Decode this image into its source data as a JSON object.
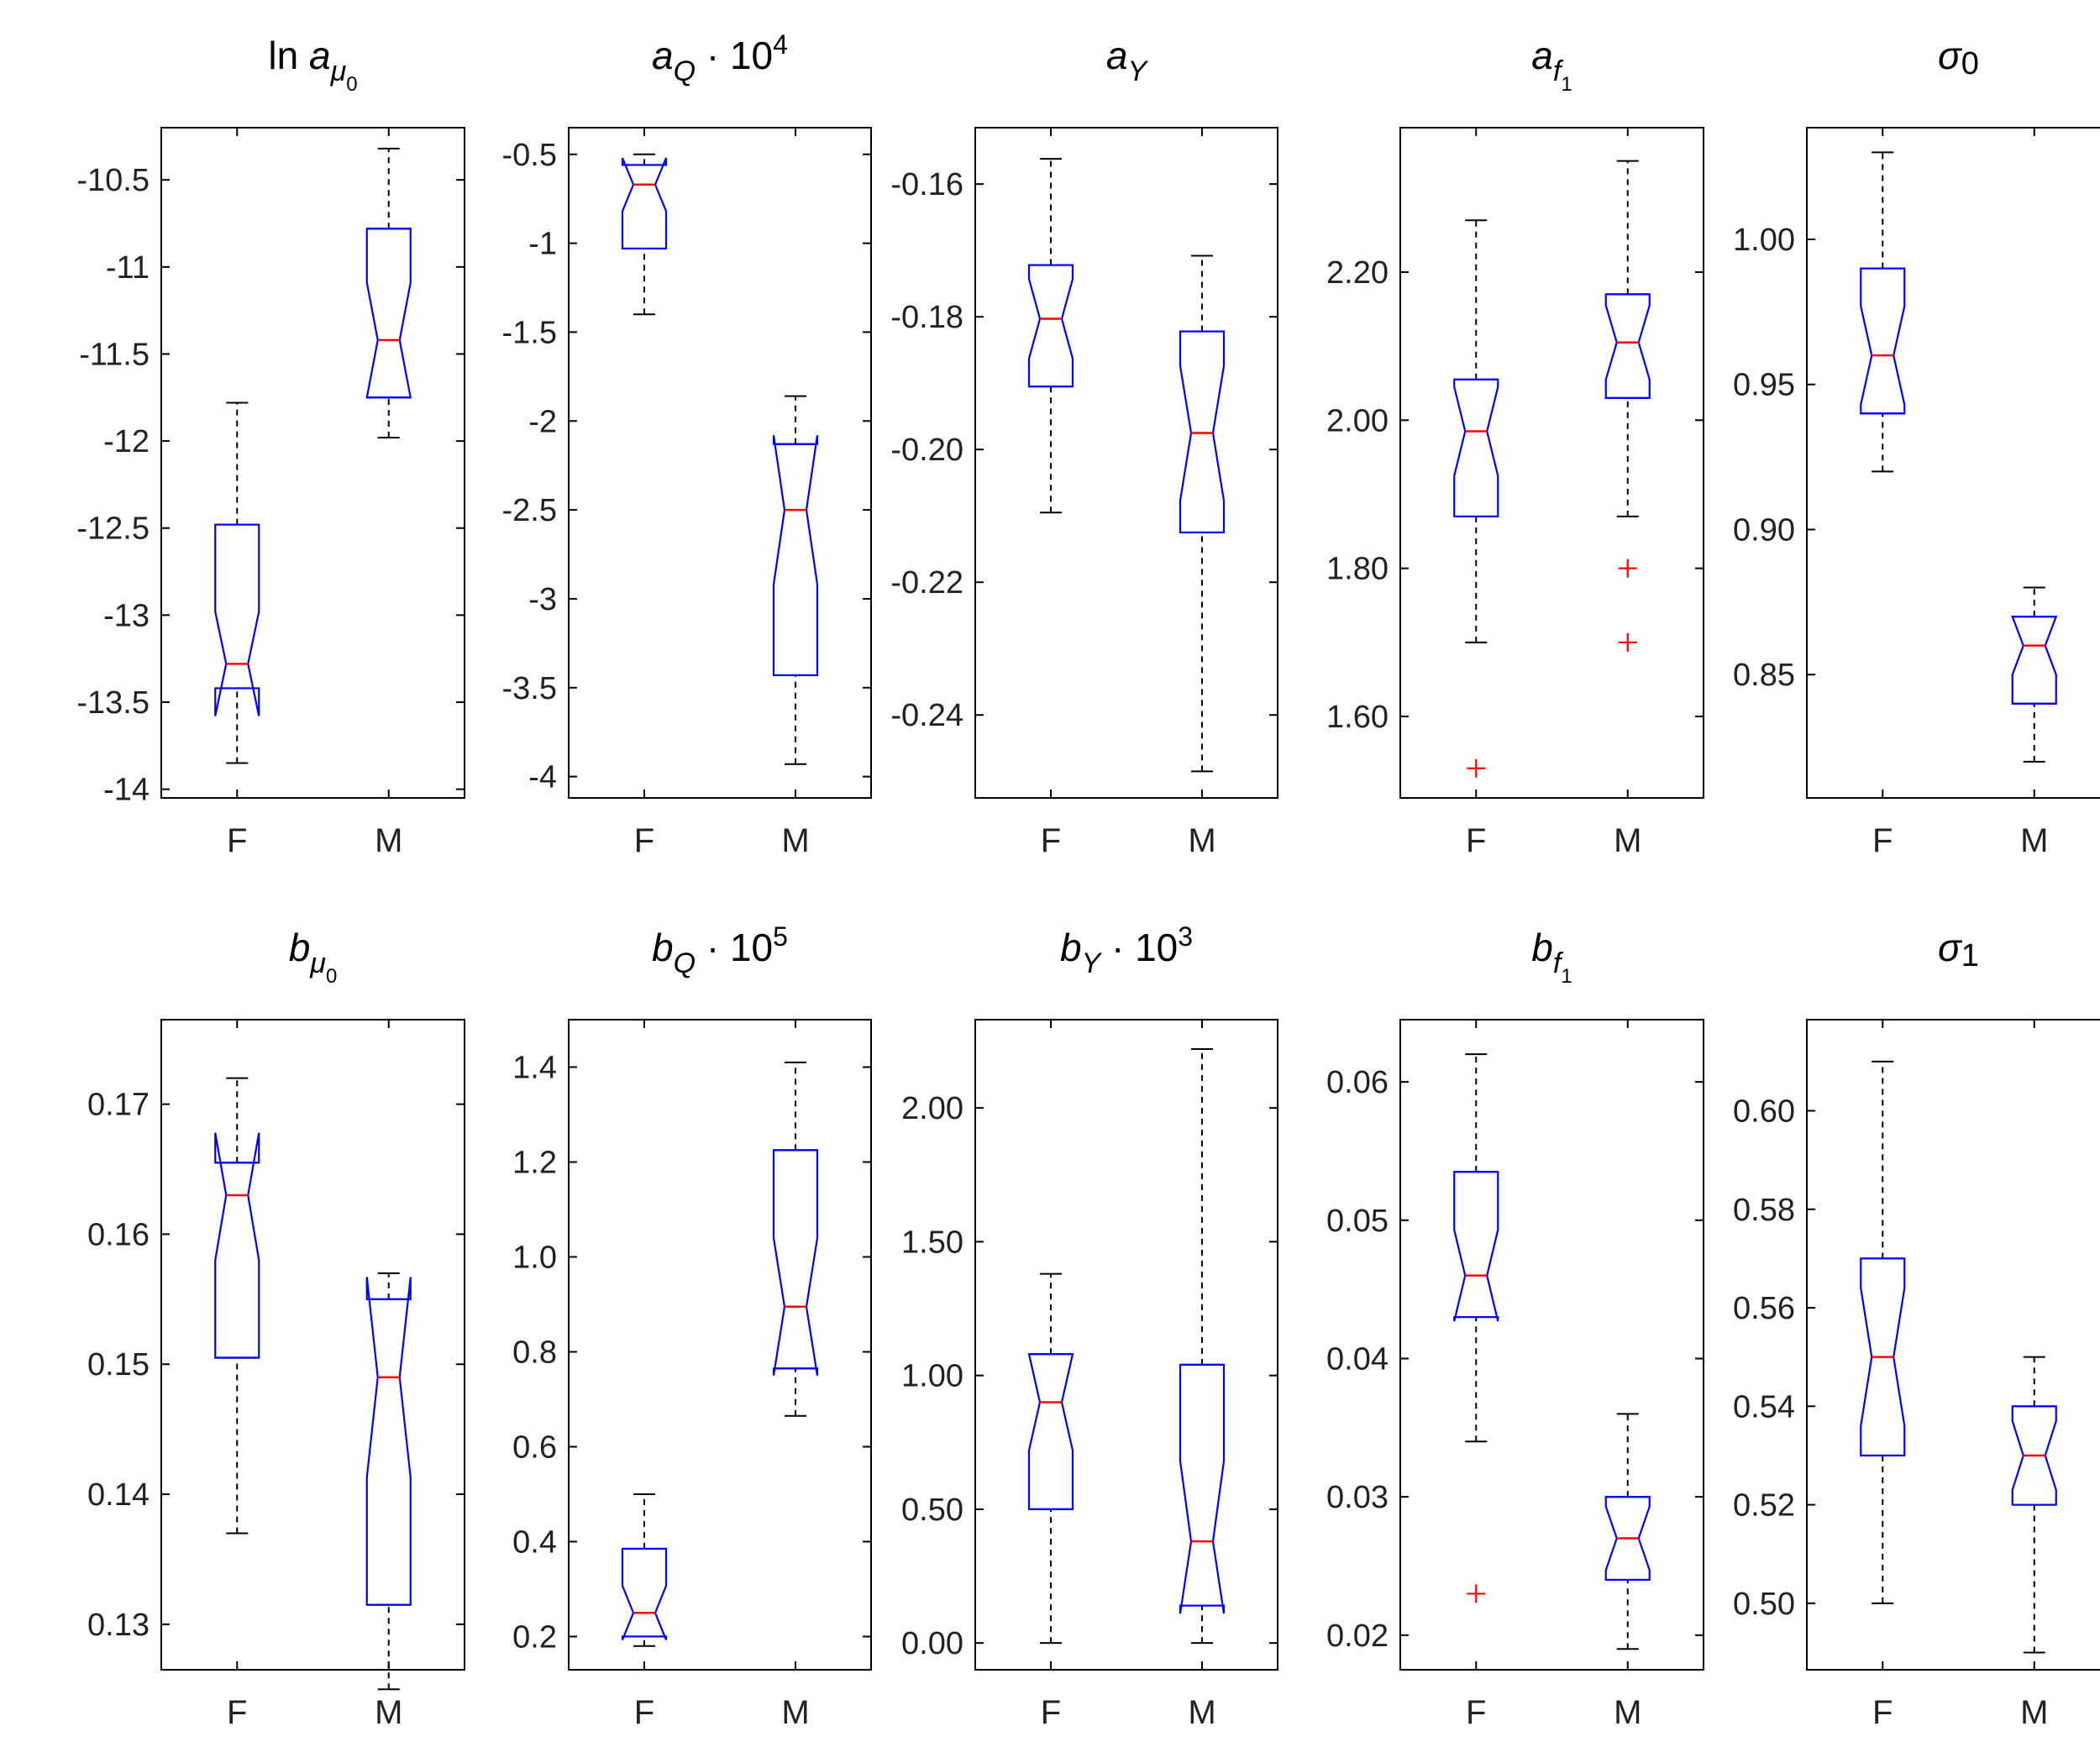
{
  "chart_data": [
    {
      "type": "boxplot",
      "title": "ln a",
      "title_sub": "μ",
      "title_subsub": "0",
      "title_prefix": "ln ",
      "categories": [
        "F",
        "M"
      ],
      "ylim": [
        -14.05,
        -10.2
      ],
      "yticks": [
        -14,
        -13.5,
        -13,
        -12.5,
        -12,
        -11.5,
        -11,
        -10.5
      ],
      "ytick_labels": [
        "-14",
        "-13.5",
        "-13",
        "-12.5",
        "-12",
        "-11.5",
        "-11",
        "-10.5"
      ],
      "boxes": [
        {
          "whisker_low": -13.85,
          "q1": -13.42,
          "median": -13.28,
          "q3": -12.48,
          "whisker_high": -11.78,
          "notch_low": -13.58,
          "notch_high": -12.98,
          "outliers": []
        },
        {
          "whisker_low": -11.98,
          "q1": -11.75,
          "median": -11.42,
          "q3": -10.78,
          "whisker_high": -10.32,
          "notch_low": -11.75,
          "notch_high": -11.09,
          "outliers": []
        }
      ]
    },
    {
      "type": "boxplot",
      "title": "a",
      "title_sub": "Q",
      "title_suffix": " · 10",
      "title_sup": "4",
      "categories": [
        "F",
        "M"
      ],
      "ylim": [
        -4.12,
        -0.35
      ],
      "yticks": [
        -4,
        -3.5,
        -3,
        -2.5,
        -2,
        -1.5,
        -1,
        -0.5
      ],
      "ytick_labels": [
        "-4",
        "-3.5",
        "-3",
        "-2.5",
        "-2",
        "-1.5",
        "-1",
        "-0.5"
      ],
      "boxes": [
        {
          "whisker_low": -1.4,
          "q1": -1.03,
          "median": -0.67,
          "q3": -0.56,
          "whisker_high": -0.5,
          "notch_low": -0.82,
          "notch_high": -0.52,
          "outliers": []
        },
        {
          "whisker_low": -3.93,
          "q1": -3.43,
          "median": -2.5,
          "q3": -2.13,
          "whisker_high": -1.86,
          "notch_low": -2.92,
          "notch_high": -2.08,
          "outliers": []
        }
      ]
    },
    {
      "type": "boxplot",
      "title": "a",
      "title_sub": "Y",
      "categories": [
        "F",
        "M"
      ],
      "ylim": [
        -0.2525,
        -0.1515
      ],
      "yticks": [
        -0.24,
        -0.22,
        -0.2,
        -0.18,
        -0.16
      ],
      "ytick_labels": [
        "-0.24",
        "-0.22",
        "-0.20",
        "-0.18",
        "-0.16"
      ],
      "boxes": [
        {
          "whisker_low": -0.2095,
          "q1": -0.1905,
          "median": -0.1803,
          "q3": -0.1722,
          "whisker_high": -0.1562,
          "notch_low": -0.1863,
          "notch_high": -0.1743,
          "outliers": []
        },
        {
          "whisker_low": -0.2485,
          "q1": -0.2125,
          "median": -0.1975,
          "q3": -0.1822,
          "whisker_high": -0.1708,
          "notch_low": -0.2077,
          "notch_high": -0.1874,
          "outliers": []
        }
      ]
    },
    {
      "type": "boxplot",
      "title": "a",
      "title_sub": "f",
      "title_subsub": "1",
      "categories": [
        "F",
        "M"
      ],
      "ylim": [
        1.49,
        2.395
      ],
      "yticks": [
        1.6,
        1.8,
        2,
        2.2
      ],
      "ytick_labels": [
        "1.60",
        "1.80",
        "2.00",
        "2.20"
      ],
      "boxes": [
        {
          "whisker_low": 1.7,
          "q1": 1.87,
          "median": 1.985,
          "q3": 2.055,
          "whisker_high": 2.27,
          "notch_low": 1.925,
          "notch_high": 2.045,
          "outliers": [
            1.53
          ]
        },
        {
          "whisker_low": 1.87,
          "q1": 2.03,
          "median": 2.105,
          "q3": 2.17,
          "whisker_high": 2.35,
          "notch_low": 2.055,
          "notch_high": 2.155,
          "outliers": [
            1.8,
            1.7
          ]
        }
      ]
    },
    {
      "type": "boxplot",
      "title": "σ",
      "title_sub": "0",
      "sub_inline": true,
      "categories": [
        "F",
        "M"
      ],
      "ylim": [
        0.8075,
        1.0385
      ],
      "yticks": [
        0.85,
        0.9,
        0.95,
        1
      ],
      "ytick_labels": [
        "0.85",
        "0.90",
        "0.95",
        "1.00"
      ],
      "boxes": [
        {
          "whisker_low": 0.92,
          "q1": 0.94,
          "median": 0.96,
          "q3": 0.99,
          "whisker_high": 1.03,
          "notch_low": 0.943,
          "notch_high": 0.977,
          "outliers": []
        },
        {
          "whisker_low": 0.82,
          "q1": 0.84,
          "median": 0.86,
          "q3": 0.87,
          "whisker_high": 0.88,
          "notch_low": 0.85,
          "notch_high": 0.87,
          "outliers": []
        }
      ]
    },
    {
      "type": "boxplot",
      "title": "b",
      "title_sub": "μ",
      "title_subsub": "0",
      "categories": [
        "F",
        "M"
      ],
      "ylim": [
        0.1265,
        0.1765
      ],
      "yticks": [
        0.13,
        0.14,
        0.15,
        0.16,
        0.17
      ],
      "ytick_labels": [
        "0.13",
        "0.14",
        "0.15",
        "0.16",
        "0.17"
      ],
      "boxes": [
        {
          "whisker_low": 0.137,
          "q1": 0.1505,
          "median": 0.163,
          "q3": 0.1655,
          "whisker_high": 0.172,
          "notch_low": 0.158,
          "notch_high": 0.1678,
          "outliers": []
        },
        {
          "whisker_low": 0.125,
          "q1": 0.1315,
          "median": 0.149,
          "q3": 0.155,
          "whisker_high": 0.157,
          "notch_low": 0.1413,
          "notch_high": 0.1567,
          "outliers": []
        }
      ]
    },
    {
      "type": "boxplot",
      "title": "b",
      "title_sub": "Q",
      "title_suffix": " · 10",
      "title_sup": "5",
      "categories": [
        "F",
        "M"
      ],
      "ylim": [
        0.13,
        1.5
      ],
      "yticks": [
        0.2,
        0.4,
        0.6,
        0.8,
        1,
        1.2,
        1.4
      ],
      "ytick_labels": [
        "0.2",
        "0.4",
        "0.6",
        "0.8",
        "1.0",
        "1.2",
        "1.4"
      ],
      "boxes": [
        {
          "whisker_low": 0.18,
          "q1": 0.2,
          "median": 0.25,
          "q3": 0.385,
          "whisker_high": 0.5,
          "notch_low": 0.193,
          "notch_high": 0.307,
          "outliers": []
        },
        {
          "whisker_low": 0.665,
          "q1": 0.765,
          "median": 0.895,
          "q3": 1.225,
          "whisker_high": 1.41,
          "notch_low": 0.75,
          "notch_high": 1.04,
          "outliers": []
        }
      ]
    },
    {
      "type": "boxplot",
      "title": "b",
      "title_sub": "Y",
      "title_suffix": " · 10",
      "title_sup": "3",
      "categories": [
        "F",
        "M"
      ],
      "ylim": [
        -0.1,
        2.33
      ],
      "yticks": [
        0,
        0.5,
        1,
        1.5,
        2
      ],
      "ytick_labels": [
        "0.00",
        "0.50",
        "1.00",
        "1.50",
        "2.00"
      ],
      "boxes": [
        {
          "whisker_low": 0,
          "q1": 0.5,
          "median": 0.9,
          "q3": 1.08,
          "whisker_high": 1.38,
          "notch_low": 0.72,
          "notch_high": 1.08,
          "outliers": []
        },
        {
          "whisker_low": 0,
          "q1": 0.14,
          "median": 0.38,
          "q3": 1.04,
          "whisker_high": 2.22,
          "notch_low": 0.11,
          "notch_high": 0.68,
          "outliers": []
        }
      ]
    },
    {
      "type": "boxplot",
      "title": "b",
      "title_sub": "f",
      "title_subsub": "1",
      "categories": [
        "F",
        "M"
      ],
      "ylim": [
        0.0175,
        0.0645
      ],
      "yticks": [
        0.02,
        0.03,
        0.04,
        0.05,
        0.06
      ],
      "ytick_labels": [
        "0.02",
        "0.03",
        "0.04",
        "0.05",
        "0.06"
      ],
      "boxes": [
        {
          "whisker_low": 0.034,
          "q1": 0.043,
          "median": 0.046,
          "q3": 0.0535,
          "whisker_high": 0.062,
          "notch_low": 0.0427,
          "notch_high": 0.0493,
          "outliers": [
            0.023
          ]
        },
        {
          "whisker_low": 0.019,
          "q1": 0.024,
          "median": 0.027,
          "q3": 0.03,
          "whisker_high": 0.036,
          "notch_low": 0.0247,
          "notch_high": 0.0293,
          "outliers": []
        }
      ]
    },
    {
      "type": "boxplot",
      "title": "σ",
      "title_sub": "1",
      "sub_inline": true,
      "categories": [
        "F",
        "M"
      ],
      "ylim": [
        0.4865,
        0.6185
      ],
      "yticks": [
        0.5,
        0.52,
        0.54,
        0.56,
        0.58,
        0.6
      ],
      "ytick_labels": [
        "0.50",
        "0.52",
        "0.54",
        "0.56",
        "0.58",
        "0.60"
      ],
      "boxes": [
        {
          "whisker_low": 0.5,
          "q1": 0.53,
          "median": 0.55,
          "q3": 0.57,
          "whisker_high": 0.61,
          "notch_low": 0.536,
          "notch_high": 0.564,
          "outliers": []
        },
        {
          "whisker_low": 0.49,
          "q1": 0.52,
          "median": 0.53,
          "q3": 0.54,
          "whisker_high": 0.55,
          "notch_low": 0.523,
          "notch_high": 0.537,
          "outliers": []
        }
      ]
    }
  ],
  "colors": {
    "box": "#0000ff",
    "median": "#ff0000",
    "whisker": "#000000",
    "outlier": "#ff0000",
    "axis": "#000000"
  }
}
